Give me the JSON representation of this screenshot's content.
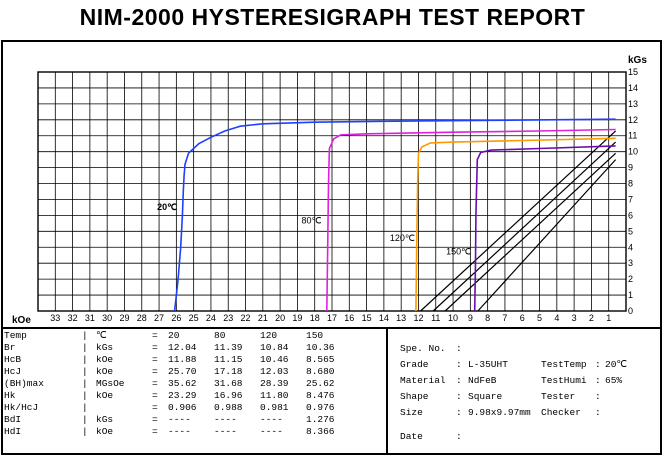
{
  "title": "NIM-2000 HYSTERESIGRAPH TEST REPORT",
  "chart_data": {
    "type": "line",
    "x_unit": "kOe",
    "y_unit": "kGs",
    "x_ticks": [
      33,
      32,
      31,
      30,
      29,
      28,
      27,
      26,
      25,
      24,
      23,
      22,
      21,
      20,
      19,
      18,
      17,
      16,
      15,
      14,
      13,
      12,
      11,
      10,
      9,
      8,
      7,
      6,
      5,
      4,
      3,
      2,
      1
    ],
    "y_ticks": [
      0,
      1,
      2,
      3,
      4,
      5,
      6,
      7,
      8,
      9,
      10,
      11,
      12,
      13,
      14,
      15
    ],
    "xlim": [
      34,
      0
    ],
    "ylim": [
      0,
      15
    ],
    "grid": true,
    "series": [
      {
        "name": "20℃",
        "label": "20℃",
        "color": "#1f3fff",
        "intrinsic": [
          [
            26.1,
            0
          ],
          [
            25.9,
            2
          ],
          [
            25.75,
            4
          ],
          [
            25.65,
            6
          ],
          [
            25.6,
            7.5
          ],
          [
            25.55,
            8.5
          ],
          [
            25.5,
            9.2
          ],
          [
            25.3,
            9.9
          ],
          [
            24.7,
            10.5
          ],
          [
            24.0,
            10.9
          ],
          [
            23.2,
            11.3
          ],
          [
            22.3,
            11.6
          ],
          [
            21.0,
            11.75
          ],
          [
            18.0,
            11.85
          ],
          [
            12.0,
            11.93
          ],
          [
            6.0,
            11.98
          ],
          [
            0.6,
            12.04
          ]
        ],
        "normal": [
          [
            11.88,
            0
          ],
          [
            0.6,
            11.3
          ]
        ]
      },
      {
        "name": "80℃",
        "label": "80℃",
        "color": "#e020e0",
        "intrinsic": [
          [
            17.3,
            0
          ],
          [
            17.25,
            4
          ],
          [
            17.2,
            8
          ],
          [
            17.15,
            10.2
          ],
          [
            16.9,
            10.8
          ],
          [
            16.5,
            11.05
          ],
          [
            15.0,
            11.12
          ],
          [
            10.0,
            11.22
          ],
          [
            5.0,
            11.3
          ],
          [
            0.6,
            11.39
          ]
        ],
        "normal": [
          [
            11.15,
            0
          ],
          [
            0.6,
            10.6
          ]
        ]
      },
      {
        "name": "120℃",
        "label": "120℃",
        "color": "#ff9900",
        "intrinsic": [
          [
            12.15,
            0
          ],
          [
            12.1,
            4
          ],
          [
            12.05,
            8
          ],
          [
            12.0,
            9.9
          ],
          [
            11.8,
            10.3
          ],
          [
            11.3,
            10.55
          ],
          [
            10.0,
            10.6
          ],
          [
            6.0,
            10.7
          ],
          [
            0.6,
            10.84
          ]
        ],
        "normal": [
          [
            10.46,
            0
          ],
          [
            0.6,
            9.9
          ]
        ]
      },
      {
        "name": "150℃",
        "label": "150℃",
        "color": "#6a0dad",
        "intrinsic": [
          [
            8.75,
            0
          ],
          [
            8.7,
            3
          ],
          [
            8.68,
            6
          ],
          [
            8.6,
            9.5
          ],
          [
            8.4,
            9.95
          ],
          [
            7.8,
            10.1
          ],
          [
            5.0,
            10.2
          ],
          [
            0.6,
            10.36
          ]
        ],
        "normal": [
          [
            8.565,
            0
          ],
          [
            0.6,
            9.5
          ]
        ]
      }
    ]
  },
  "properties": {
    "rows": [
      {
        "name": "Temp",
        "unit": "℃",
        "values": [
          "20",
          "80",
          "120",
          "150"
        ]
      },
      {
        "name": "Br",
        "unit": "kGs",
        "values": [
          "12.04",
          "11.39",
          "10.84",
          "10.36"
        ]
      },
      {
        "name": "HcB",
        "unit": "kOe",
        "values": [
          "11.88",
          "11.15",
          "10.46",
          "8.565"
        ]
      },
      {
        "name": "HcJ",
        "unit": "kOe",
        "values": [
          "25.70",
          "17.18",
          "12.03",
          "8.680"
        ]
      },
      {
        "name": "(BH)max",
        "unit": "MGsOe",
        "values": [
          "35.62",
          "31.68",
          "28.39",
          "25.62"
        ]
      },
      {
        "name": "Hk",
        "unit": "kOe",
        "values": [
          "23.29",
          "16.96",
          "11.80",
          "8.476"
        ]
      },
      {
        "name": "Hk/HcJ",
        "unit": "",
        "values": [
          "0.906",
          "0.988",
          "0.981",
          "0.976"
        ]
      },
      {
        "name": "BdI",
        "unit": "kGs",
        "values": [
          "----",
          "----",
          "----",
          "1.276"
        ]
      },
      {
        "name": "HdI",
        "unit": "kOe",
        "values": [
          "----",
          "----",
          "----",
          "8.366"
        ]
      }
    ]
  },
  "specimen": {
    "spe_no_label": "Spe. No.",
    "spe_no_value": "",
    "grade_label": "Grade",
    "grade_value": "L-35UHT",
    "testtemp_label": "TestTemp",
    "testtemp_value": "20℃",
    "material_label": "Material",
    "material_value": "NdFeB",
    "testhumi_label": "TestHumi",
    "testhumi_value": "65%",
    "shape_label": "Shape",
    "shape_value": "Square",
    "tester_label": "Tester",
    "tester_value": "",
    "size_label": "Size",
    "size_value": "9.98x9.97mm",
    "checker_label": "Checker",
    "checker_value": "",
    "date_label": "Date",
    "date_value": ""
  }
}
